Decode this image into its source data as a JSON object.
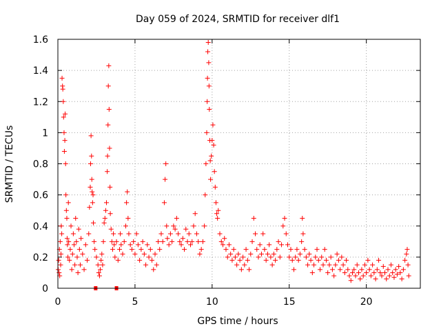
{
  "chart_data": {
    "type": "scatter",
    "title": "Day 059 of 2024, SRMTID for receiver dlf1",
    "xlabel": "GPS time / hours",
    "ylabel": "SRMTID / TECUs",
    "xlim": [
      0,
      23.5
    ],
    "ylim": [
      0,
      1.6
    ],
    "x_ticks": [
      0,
      5,
      10,
      15,
      20
    ],
    "x_tick_labels": [
      "0",
      "5",
      "10",
      "15",
      "20"
    ],
    "y_ticks": [
      0,
      0.2,
      0.4,
      0.6,
      0.8,
      1.0,
      1.2,
      1.4,
      1.6
    ],
    "y_tick_labels": [
      "0",
      "0.2",
      "0.4",
      "0.6",
      "0.8",
      "1",
      "1.2",
      "1.4",
      "1.6"
    ],
    "grid": true,
    "marker": "+",
    "series_color": "#ff0000",
    "gap_markers": [
      {
        "x": 2.45,
        "y": 0
      },
      {
        "x": 3.8,
        "y": 0
      }
    ],
    "series": [
      {
        "name": "SRMTID",
        "points": [
          [
            0.02,
            0.12
          ],
          [
            0.05,
            0.18
          ],
          [
            0.08,
            0.1
          ],
          [
            0.1,
            0.25
          ],
          [
            0.12,
            0.08
          ],
          [
            0.15,
            0.3
          ],
          [
            0.18,
            0.15
          ],
          [
            0.2,
            0.22
          ],
          [
            0.22,
            0.4
          ],
          [
            0.25,
            0.35
          ],
          [
            0.27,
            1.35
          ],
          [
            0.3,
            1.3
          ],
          [
            0.32,
            1.28
          ],
          [
            0.35,
            1.2
          ],
          [
            0.37,
            1.1
          ],
          [
            0.4,
            1.0
          ],
          [
            0.42,
            0.88
          ],
          [
            0.45,
            0.95
          ],
          [
            0.47,
            1.12
          ],
          [
            0.5,
            0.8
          ],
          [
            0.52,
            0.6
          ],
          [
            0.55,
            0.5
          ],
          [
            0.58,
            0.45
          ],
          [
            0.6,
            0.32
          ],
          [
            0.62,
            0.28
          ],
          [
            0.65,
            0.2
          ],
          [
            0.68,
            0.55
          ],
          [
            0.7,
            0.3
          ],
          [
            0.75,
            0.18
          ],
          [
            0.8,
            0.25
          ],
          [
            0.85,
            0.4
          ],
          [
            0.9,
            0.12
          ],
          [
            0.95,
            0.22
          ],
          [
            1.0,
            0.35
          ],
          [
            1.05,
            0.28
          ],
          [
            1.1,
            0.15
          ],
          [
            1.15,
            0.45
          ],
          [
            1.2,
            0.3
          ],
          [
            1.25,
            0.2
          ],
          [
            1.3,
            0.1
          ],
          [
            1.35,
            0.38
          ],
          [
            1.4,
            0.25
          ],
          [
            1.45,
            0.15
          ],
          [
            1.5,
            0.32
          ],
          [
            1.6,
            0.22
          ],
          [
            1.7,
            0.12
          ],
          [
            1.8,
            0.28
          ],
          [
            1.9,
            0.18
          ],
          [
            2.0,
            0.35
          ],
          [
            2.05,
            0.52
          ],
          [
            2.1,
            0.65
          ],
          [
            2.12,
            0.8
          ],
          [
            2.15,
            0.98
          ],
          [
            2.18,
            0.85
          ],
          [
            2.2,
            0.7
          ],
          [
            2.22,
            0.62
          ],
          [
            2.25,
            0.55
          ],
          [
            2.28,
            0.6
          ],
          [
            2.3,
            0.42
          ],
          [
            2.35,
            0.3
          ],
          [
            2.4,
            0.25
          ],
          [
            2.5,
            0.2
          ],
          [
            2.6,
            0.15
          ],
          [
            2.65,
            0.1
          ],
          [
            2.7,
            0.08
          ],
          [
            2.75,
            0.12
          ],
          [
            2.8,
            0.18
          ],
          [
            2.85,
            0.22
          ],
          [
            2.9,
            0.15
          ],
          [
            2.95,
            0.3
          ],
          [
            3.0,
            0.42
          ],
          [
            3.05,
            0.45
          ],
          [
            3.1,
            0.5
          ],
          [
            3.15,
            0.55
          ],
          [
            3.2,
            0.75
          ],
          [
            3.22,
            0.85
          ],
          [
            3.25,
            1.05
          ],
          [
            3.27,
            1.3
          ],
          [
            3.3,
            1.43
          ],
          [
            3.32,
            1.15
          ],
          [
            3.35,
            0.9
          ],
          [
            3.38,
            0.65
          ],
          [
            3.4,
            0.48
          ],
          [
            3.45,
            0.38
          ],
          [
            3.5,
            0.3
          ],
          [
            3.55,
            0.25
          ],
          [
            3.6,
            0.35
          ],
          [
            3.65,
            0.28
          ],
          [
            3.7,
            0.2
          ],
          [
            3.8,
            0.3
          ],
          [
            3.9,
            0.18
          ],
          [
            4.0,
            0.25
          ],
          [
            4.05,
            0.35
          ],
          [
            4.1,
            0.28
          ],
          [
            4.2,
            0.22
          ],
          [
            4.3,
            0.3
          ],
          [
            4.4,
            0.4
          ],
          [
            4.45,
            0.55
          ],
          [
            4.5,
            0.62
          ],
          [
            4.55,
            0.45
          ],
          [
            4.6,
            0.35
          ],
          [
            4.7,
            0.28
          ],
          [
            4.8,
            0.25
          ],
          [
            4.9,
            0.3
          ],
          [
            5.0,
            0.22
          ],
          [
            5.1,
            0.35
          ],
          [
            5.2,
            0.28
          ],
          [
            5.3,
            0.18
          ],
          [
            5.4,
            0.25
          ],
          [
            5.5,
            0.3
          ],
          [
            5.6,
            0.22
          ],
          [
            5.7,
            0.15
          ],
          [
            5.8,
            0.28
          ],
          [
            5.9,
            0.2
          ],
          [
            6.0,
            0.25
          ],
          [
            6.1,
            0.18
          ],
          [
            6.2,
            0.12
          ],
          [
            6.3,
            0.22
          ],
          [
            6.4,
            0.15
          ],
          [
            6.5,
            0.3
          ],
          [
            6.6,
            0.25
          ],
          [
            6.7,
            0.35
          ],
          [
            6.8,
            0.3
          ],
          [
            6.9,
            0.55
          ],
          [
            6.95,
            0.7
          ],
          [
            7.0,
            0.8
          ],
          [
            7.05,
            0.4
          ],
          [
            7.1,
            0.32
          ],
          [
            7.2,
            0.28
          ],
          [
            7.3,
            0.35
          ],
          [
            7.4,
            0.3
          ],
          [
            7.5,
            0.4
          ],
          [
            7.6,
            0.38
          ],
          [
            7.7,
            0.45
          ],
          [
            7.8,
            0.35
          ],
          [
            7.9,
            0.3
          ],
          [
            8.0,
            0.28
          ],
          [
            8.1,
            0.32
          ],
          [
            8.2,
            0.25
          ],
          [
            8.3,
            0.38
          ],
          [
            8.4,
            0.3
          ],
          [
            8.5,
            0.35
          ],
          [
            8.6,
            0.28
          ],
          [
            8.7,
            0.3
          ],
          [
            8.8,
            0.4
          ],
          [
            8.9,
            0.48
          ],
          [
            9.0,
            0.35
          ],
          [
            9.1,
            0.3
          ],
          [
            9.2,
            0.22
          ],
          [
            9.3,
            0.25
          ],
          [
            9.4,
            0.3
          ],
          [
            9.5,
            0.4
          ],
          [
            9.55,
            0.6
          ],
          [
            9.6,
            0.8
          ],
          [
            9.65,
            1.0
          ],
          [
            9.68,
            1.2
          ],
          [
            9.7,
            1.35
          ],
          [
            9.72,
            1.52
          ],
          [
            9.75,
            1.58
          ],
          [
            9.78,
            1.45
          ],
          [
            9.8,
            1.3
          ],
          [
            9.82,
            1.15
          ],
          [
            9.85,
            0.95
          ],
          [
            9.88,
            0.82
          ],
          [
            9.9,
            0.7
          ],
          [
            9.95,
            0.85
          ],
          [
            10.0,
            0.95
          ],
          [
            10.05,
            1.05
          ],
          [
            10.1,
            0.92
          ],
          [
            10.15,
            0.75
          ],
          [
            10.2,
            0.65
          ],
          [
            10.25,
            0.55
          ],
          [
            10.3,
            0.48
          ],
          [
            10.35,
            0.45
          ],
          [
            10.4,
            0.5
          ],
          [
            10.5,
            0.35
          ],
          [
            10.6,
            0.3
          ],
          [
            10.7,
            0.28
          ],
          [
            10.8,
            0.32
          ],
          [
            10.9,
            0.25
          ],
          [
            11.0,
            0.2
          ],
          [
            11.1,
            0.28
          ],
          [
            11.2,
            0.22
          ],
          [
            11.3,
            0.18
          ],
          [
            11.4,
            0.25
          ],
          [
            11.5,
            0.2
          ],
          [
            11.6,
            0.15
          ],
          [
            11.7,
            0.22
          ],
          [
            11.8,
            0.18
          ],
          [
            11.9,
            0.12
          ],
          [
            12.0,
            0.2
          ],
          [
            12.1,
            0.15
          ],
          [
            12.2,
            0.25
          ],
          [
            12.3,
            0.18
          ],
          [
            12.4,
            0.12
          ],
          [
            12.5,
            0.22
          ],
          [
            12.6,
            0.3
          ],
          [
            12.7,
            0.45
          ],
          [
            12.8,
            0.35
          ],
          [
            12.9,
            0.25
          ],
          [
            13.0,
            0.2
          ],
          [
            13.1,
            0.28
          ],
          [
            13.2,
            0.22
          ],
          [
            13.3,
            0.35
          ],
          [
            13.4,
            0.25
          ],
          [
            13.5,
            0.18
          ],
          [
            13.6,
            0.22
          ],
          [
            13.7,
            0.28
          ],
          [
            13.8,
            0.2
          ],
          [
            13.9,
            0.15
          ],
          [
            14.0,
            0.22
          ],
          [
            14.1,
            0.18
          ],
          [
            14.2,
            0.25
          ],
          [
            14.3,
            0.3
          ],
          [
            14.4,
            0.2
          ],
          [
            14.5,
            0.28
          ],
          [
            14.6,
            0.4
          ],
          [
            14.7,
            0.45
          ],
          [
            14.8,
            0.35
          ],
          [
            14.9,
            0.28
          ],
          [
            15.0,
            0.2
          ],
          [
            15.1,
            0.25
          ],
          [
            15.2,
            0.18
          ],
          [
            15.3,
            0.12
          ],
          [
            15.4,
            0.2
          ],
          [
            15.5,
            0.25
          ],
          [
            15.6,
            0.18
          ],
          [
            15.7,
            0.22
          ],
          [
            15.8,
            0.3
          ],
          [
            15.85,
            0.45
          ],
          [
            15.9,
            0.35
          ],
          [
            16.0,
            0.25
          ],
          [
            16.1,
            0.2
          ],
          [
            16.2,
            0.15
          ],
          [
            16.3,
            0.22
          ],
          [
            16.4,
            0.18
          ],
          [
            16.5,
            0.1
          ],
          [
            16.6,
            0.15
          ],
          [
            16.7,
            0.2
          ],
          [
            16.8,
            0.25
          ],
          [
            16.9,
            0.18
          ],
          [
            17.0,
            0.12
          ],
          [
            17.1,
            0.2
          ],
          [
            17.2,
            0.15
          ],
          [
            17.3,
            0.25
          ],
          [
            17.4,
            0.18
          ],
          [
            17.5,
            0.1
          ],
          [
            17.6,
            0.15
          ],
          [
            17.7,
            0.2
          ],
          [
            17.8,
            0.12
          ],
          [
            17.9,
            0.08
          ],
          [
            18.0,
            0.15
          ],
          [
            18.1,
            0.22
          ],
          [
            18.2,
            0.18
          ],
          [
            18.3,
            0.12
          ],
          [
            18.4,
            0.2
          ],
          [
            18.5,
            0.15
          ],
          [
            18.6,
            0.1
          ],
          [
            18.7,
            0.18
          ],
          [
            18.8,
            0.12
          ],
          [
            18.9,
            0.08
          ],
          [
            19.0,
            0.05
          ],
          [
            19.1,
            0.1
          ],
          [
            19.2,
            0.12
          ],
          [
            19.3,
            0.08
          ],
          [
            19.4,
            0.15
          ],
          [
            19.5,
            0.1
          ],
          [
            19.6,
            0.06
          ],
          [
            19.7,
            0.12
          ],
          [
            19.8,
            0.08
          ],
          [
            19.9,
            0.15
          ],
          [
            20.0,
            0.1
          ],
          [
            20.1,
            0.18
          ],
          [
            20.2,
            0.12
          ],
          [
            20.3,
            0.08
          ],
          [
            20.4,
            0.15
          ],
          [
            20.5,
            0.1
          ],
          [
            20.6,
            0.06
          ],
          [
            20.7,
            0.12
          ],
          [
            20.8,
            0.18
          ],
          [
            20.9,
            0.1
          ],
          [
            21.0,
            0.08
          ],
          [
            21.1,
            0.14
          ],
          [
            21.2,
            0.1
          ],
          [
            21.3,
            0.06
          ],
          [
            21.4,
            0.12
          ],
          [
            21.5,
            0.08
          ],
          [
            21.6,
            0.15
          ],
          [
            21.7,
            0.1
          ],
          [
            21.8,
            0.07
          ],
          [
            21.9,
            0.12
          ],
          [
            22.0,
            0.09
          ],
          [
            22.1,
            0.14
          ],
          [
            22.2,
            0.1
          ],
          [
            22.3,
            0.06
          ],
          [
            22.4,
            0.12
          ],
          [
            22.5,
            0.18
          ],
          [
            22.6,
            0.22
          ],
          [
            22.65,
            0.25
          ],
          [
            22.7,
            0.15
          ],
          [
            22.75,
            0.08
          ]
        ]
      }
    ]
  }
}
